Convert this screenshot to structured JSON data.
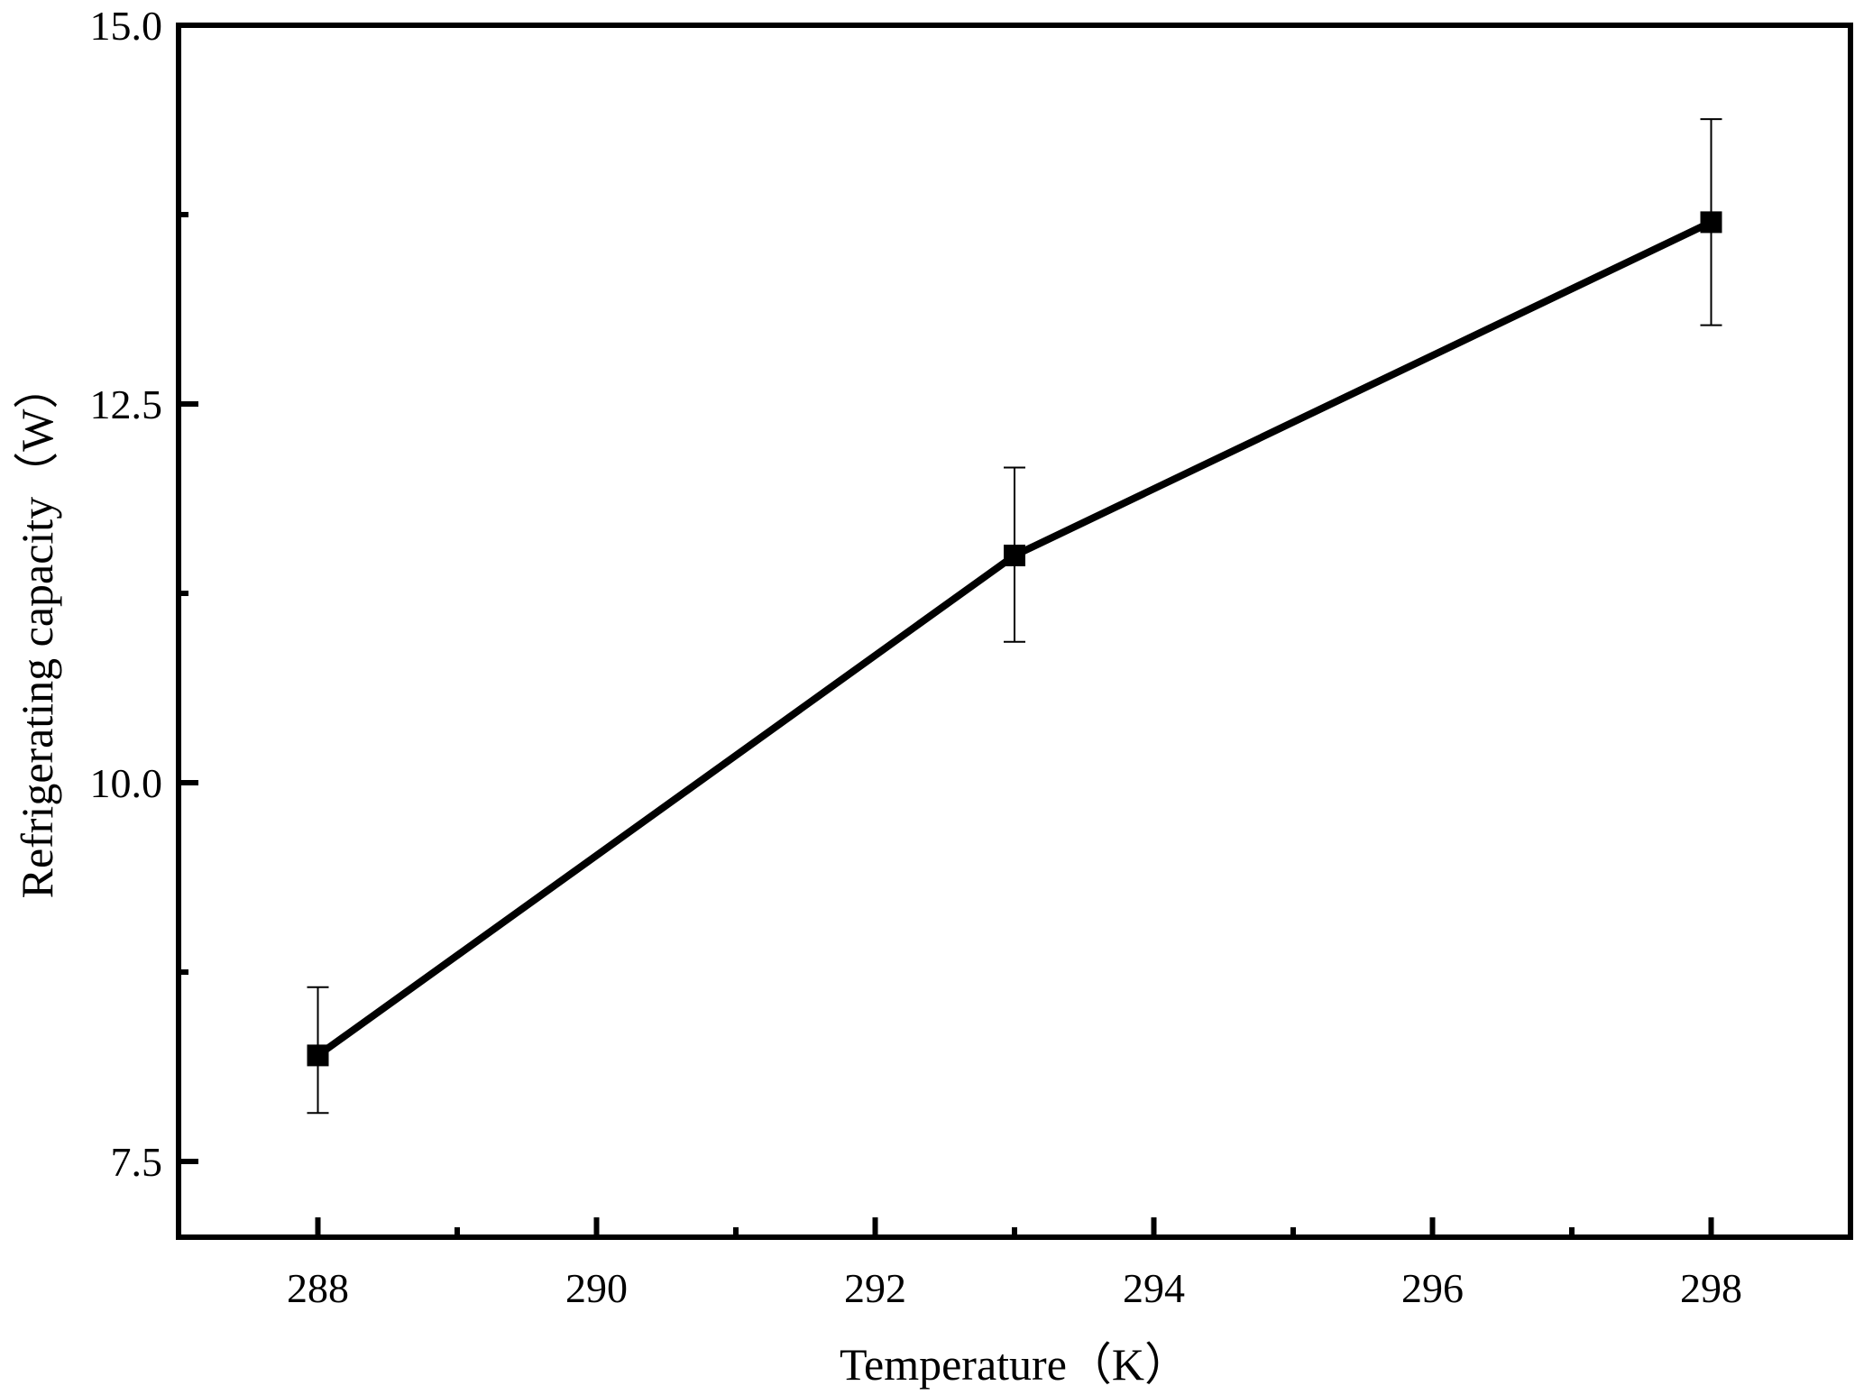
{
  "chart_data": {
    "type": "line",
    "title": "",
    "xlabel": "Temperature（K）",
    "ylabel": "Refrigerating capacity（W）",
    "xlim": [
      287,
      299
    ],
    "ylim": [
      7,
      15
    ],
    "x_ticks": [
      "288",
      "290",
      "292",
      "294",
      "296",
      "298"
    ],
    "y_ticks": [
      "7.5",
      "10.0",
      "12.5",
      "15.0"
    ],
    "x_minor_ticks": [
      289,
      291,
      293,
      295,
      297
    ],
    "y_minor_ticks": [
      8.75,
      11.25,
      13.75
    ],
    "grid": false,
    "legend": "none",
    "marker": "square",
    "color": "#000000",
    "series": [
      {
        "x": [
          288,
          293,
          298
        ],
        "y": [
          8.2,
          11.5,
          13.7
        ],
        "err_upper": [
          8.65,
          12.08,
          14.38
        ],
        "err_lower": [
          7.82,
          10.93,
          13.02
        ]
      }
    ]
  }
}
